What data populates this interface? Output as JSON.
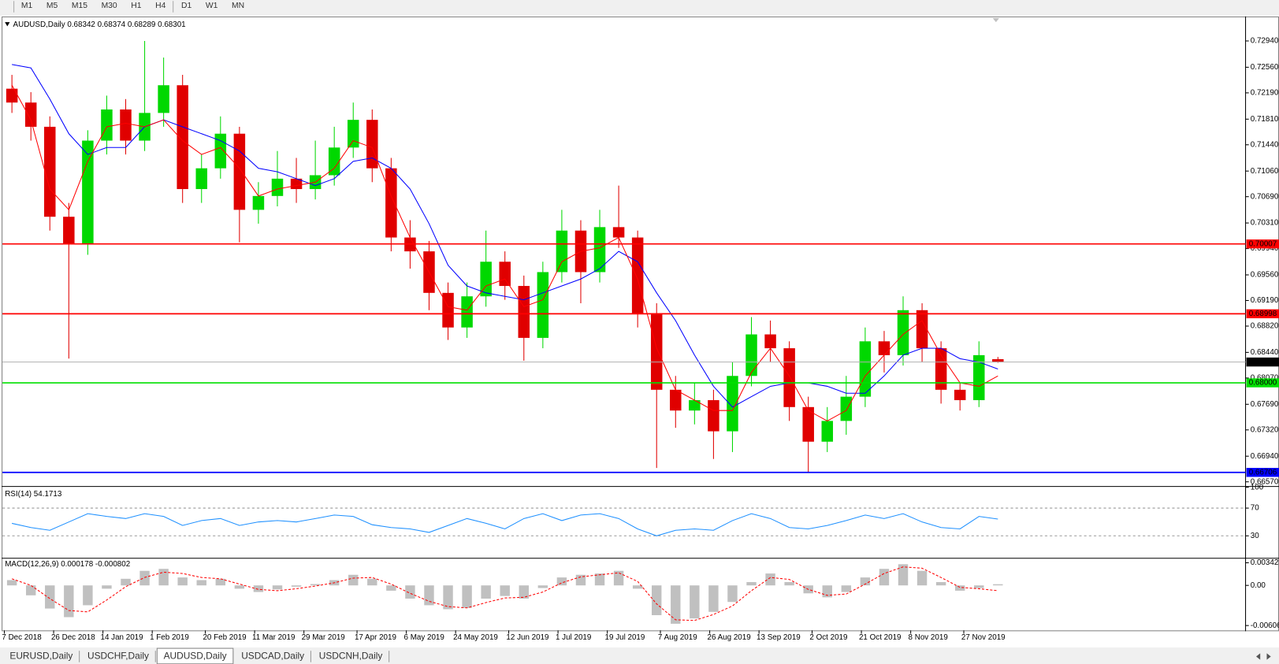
{
  "toolbar": {
    "timeframes": [
      "M1",
      "M5",
      "M15",
      "M30",
      "H1",
      "H4",
      "D1",
      "W1",
      "MN"
    ]
  },
  "chart_data": [
    {
      "type": "candlestick",
      "title": "AUDUSD,Daily 0.68342 0.68374 0.68289 0.68301",
      "x": [
        2,
        7,
        12,
        17,
        22,
        27,
        32,
        37,
        42,
        47,
        52,
        57,
        62,
        67,
        72,
        77,
        82,
        87,
        92,
        97,
        102,
        107,
        112,
        117,
        122,
        127,
        132,
        137,
        142,
        147,
        152,
        157,
        162,
        167,
        172,
        177,
        182,
        187,
        192,
        197,
        202,
        207,
        212,
        217,
        222,
        227,
        232,
        237,
        242,
        247,
        252,
        257,
        262
      ],
      "open": [
        0.7225,
        0.7205,
        0.717,
        0.704,
        0.7,
        0.715,
        0.7195,
        0.715,
        0.719,
        0.723,
        0.708,
        0.711,
        0.716,
        0.705,
        0.707,
        0.7095,
        0.708,
        0.71,
        0.714,
        0.718,
        0.711,
        0.701,
        0.699,
        0.693,
        0.688,
        0.6925,
        0.6975,
        0.694,
        0.6865,
        0.696,
        0.702,
        0.696,
        0.7025,
        0.701,
        0.69,
        0.679,
        0.676,
        0.6775,
        0.673,
        0.681,
        0.687,
        0.685,
        0.6765,
        0.6715,
        0.6745,
        0.678,
        0.686,
        0.684,
        0.6905,
        0.685,
        0.679,
        0.6775,
        0.68342
      ],
      "high": [
        0.7245,
        0.722,
        0.7185,
        0.706,
        0.7165,
        0.7215,
        0.721,
        0.7294,
        0.727,
        0.7245,
        0.713,
        0.7185,
        0.717,
        0.709,
        0.7135,
        0.7125,
        0.715,
        0.717,
        0.7205,
        0.7195,
        0.7125,
        0.7035,
        0.7005,
        0.6945,
        0.6945,
        0.702,
        0.699,
        0.6955,
        0.6975,
        0.705,
        0.7035,
        0.705,
        0.7085,
        0.702,
        0.6915,
        0.681,
        0.68,
        0.679,
        0.683,
        0.6895,
        0.689,
        0.686,
        0.678,
        0.6765,
        0.681,
        0.688,
        0.6875,
        0.6925,
        0.6915,
        0.686,
        0.68,
        0.686,
        0.68374
      ],
      "low": [
        0.719,
        0.715,
        0.702,
        0.6835,
        0.6985,
        0.713,
        0.713,
        0.7135,
        0.717,
        0.706,
        0.706,
        0.7095,
        0.7003,
        0.703,
        0.7055,
        0.706,
        0.7065,
        0.7085,
        0.7125,
        0.709,
        0.699,
        0.6965,
        0.6905,
        0.6862,
        0.6865,
        0.691,
        0.692,
        0.6832,
        0.685,
        0.6945,
        0.6915,
        0.6945,
        0.6995,
        0.688,
        0.6677,
        0.6735,
        0.674,
        0.669,
        0.67,
        0.6795,
        0.683,
        0.6745,
        0.667,
        0.67,
        0.6725,
        0.6765,
        0.6815,
        0.6825,
        0.683,
        0.677,
        0.676,
        0.6765,
        0.68289
      ],
      "close": [
        0.7205,
        0.717,
        0.704,
        0.7,
        0.715,
        0.7195,
        0.715,
        0.719,
        0.723,
        0.708,
        0.711,
        0.716,
        0.705,
        0.707,
        0.7095,
        0.708,
        0.71,
        0.714,
        0.718,
        0.711,
        0.701,
        0.699,
        0.693,
        0.688,
        0.6925,
        0.6975,
        0.694,
        0.6865,
        0.696,
        0.702,
        0.696,
        0.7025,
        0.701,
        0.69,
        0.679,
        0.676,
        0.6775,
        0.673,
        0.681,
        0.687,
        0.685,
        0.6765,
        0.6715,
        0.6745,
        0.678,
        0.686,
        0.684,
        0.6905,
        0.685,
        0.679,
        0.6775,
        0.684,
        0.68301
      ],
      "up_color": "#00d800",
      "down_color": "#e00000",
      "lines": [
        {
          "color": "#0000ff",
          "values": [
            0.726,
            0.7255,
            0.721,
            0.716,
            0.713,
            0.714,
            0.714,
            0.717,
            0.718,
            0.717,
            0.716,
            0.715,
            0.7135,
            0.711,
            0.7105,
            0.7095,
            0.7085,
            0.7095,
            0.712,
            0.7125,
            0.711,
            0.708,
            0.703,
            0.697,
            0.694,
            0.693,
            0.6925,
            0.692,
            0.693,
            0.694,
            0.695,
            0.6965,
            0.699,
            0.6975,
            0.693,
            0.689,
            0.684,
            0.6795,
            0.6765,
            0.678,
            0.6795,
            0.68,
            0.68,
            0.6795,
            0.6785,
            0.6785,
            0.681,
            0.684,
            0.685,
            0.685,
            0.6835,
            0.683,
            0.682
          ]
        },
        {
          "color": "#ff0000",
          "values": [
            0.723,
            0.718,
            0.708,
            0.705,
            0.712,
            0.717,
            0.7175,
            0.717,
            0.718,
            0.715,
            0.713,
            0.714,
            0.711,
            0.707,
            0.708,
            0.7085,
            0.709,
            0.711,
            0.715,
            0.714,
            0.707,
            0.701,
            0.696,
            0.691,
            0.6905,
            0.694,
            0.695,
            0.691,
            0.692,
            0.6975,
            0.699,
            0.6995,
            0.701,
            0.695,
            0.685,
            0.679,
            0.6775,
            0.676,
            0.676,
            0.6815,
            0.685,
            0.681,
            0.676,
            0.6745,
            0.676,
            0.681,
            0.684,
            0.687,
            0.689,
            0.684,
            0.68,
            0.6795,
            0.681
          ]
        }
      ],
      "levels": [
        {
          "value": 0.70007,
          "color": "#ff0000"
        },
        {
          "value": 0.68998,
          "color": "#ff0000"
        },
        {
          "value": 0.68,
          "label": "0.68000",
          "color": "#00e000"
        },
        {
          "value": 0.66706,
          "color": "#0000ff"
        },
        {
          "value": 0.68301,
          "color": "#000000"
        }
      ],
      "ylim": [
        0.6652,
        0.7327
      ],
      "yticks": [
        {
          "value": 0.7294,
          "label": "0.72940"
        },
        {
          "value": 0.7256,
          "label": "0.72560"
        },
        {
          "value": 0.7219,
          "label": "0.72190"
        },
        {
          "value": 0.7181,
          "label": "0.71810"
        },
        {
          "value": 0.7144,
          "label": "0.71440"
        },
        {
          "value": 0.7106,
          "label": "0.71060"
        },
        {
          "value": 0.7069,
          "label": "0.70690"
        },
        {
          "value": 0.7031,
          "label": "0.70310"
        },
        {
          "value": 0.6994,
          "label": "0.69940"
        },
        {
          "value": 0.6956,
          "label": "0.69560"
        },
        {
          "value": 0.6919,
          "label": "0.69190"
        },
        {
          "value": 0.6882,
          "label": "0.68820"
        },
        {
          "value": 0.6844,
          "label": "0.68440"
        },
        {
          "value": 0.6807,
          "label": "0.68070"
        },
        {
          "value": 0.6769,
          "label": "0.67690"
        },
        {
          "value": 0.6732,
          "label": "0.67320"
        },
        {
          "value": 0.6694,
          "label": "0.66940"
        },
        {
          "value": 0.6657,
          "label": "0.66570"
        }
      ],
      "xlim": [
        -0.5,
        327.3
      ],
      "xticks": [
        {
          "value": 0,
          "label": "7 Dec 2018"
        },
        {
          "value": 13,
          "label": "26 Dec 2018"
        },
        {
          "value": 26,
          "label": "14 Jan 2019"
        },
        {
          "value": 39,
          "label": "1 Feb 2019"
        },
        {
          "value": 53,
          "label": "20 Feb 2019"
        },
        {
          "value": 66,
          "label": "11 Mar 2019"
        },
        {
          "value": 79,
          "label": "29 Mar 2019"
        },
        {
          "value": 93,
          "label": "17 Apr 2019"
        },
        {
          "value": 106,
          "label": "6 May 2019"
        },
        {
          "value": 119,
          "label": "24 May 2019"
        },
        {
          "value": 133,
          "label": "12 Jun 2019"
        },
        {
          "value": 146,
          "label": "1 Jul 2019"
        },
        {
          "value": 159,
          "label": "19 Jul 2019"
        },
        {
          "value": 173,
          "label": "7 Aug 2019"
        },
        {
          "value": 186,
          "label": "26 Aug 2019"
        },
        {
          "value": 199,
          "label": "13 Sep 2019"
        },
        {
          "value": 213,
          "label": "2 Oct 2019"
        },
        {
          "value": 226,
          "label": "21 Oct 2019"
        },
        {
          "value": 239,
          "label": "8 Nov 2019"
        },
        {
          "value": 253,
          "label": "27 Nov 2019"
        }
      ]
    },
    {
      "type": "line",
      "title": "RSI(14) 54.1713",
      "color": "#1e90ff",
      "values": [
        48,
        42,
        38,
        50,
        62,
        58,
        55,
        62,
        58,
        45,
        52,
        55,
        45,
        50,
        52,
        50,
        55,
        60,
        58,
        46,
        42,
        40,
        35,
        45,
        55,
        48,
        40,
        55,
        62,
        52,
        60,
        62,
        55,
        40,
        30,
        38,
        40,
        38,
        52,
        62,
        55,
        42,
        40,
        45,
        52,
        60,
        55,
        62,
        50,
        42,
        40,
        58,
        54.1713
      ],
      "ylim": [
        0,
        100
      ],
      "yticks": [
        100,
        70,
        30
      ],
      "grid": "dashed"
    },
    {
      "type": "macd",
      "title": "MACD(12,26,9) 0.000178 -0.000802",
      "color": "#c0c0c0",
      "signal_color": "#ff0000",
      "histogram": [
        0.0008,
        -0.0015,
        -0.0035,
        -0.0048,
        -0.003,
        -0.0005,
        0.001,
        0.0022,
        0.0025,
        0.0012,
        0.0008,
        0.001,
        -0.0005,
        -0.001,
        -0.0006,
        -0.0002,
        0.0002,
        0.0008,
        0.0016,
        0.001,
        -0.0008,
        -0.002,
        -0.003,
        -0.0036,
        -0.0034,
        -0.002,
        -0.0016,
        -0.002,
        -0.0004,
        0.0012,
        0.0016,
        0.0018,
        0.0022,
        -0.0005,
        -0.0045,
        -0.0058,
        -0.005,
        -0.004,
        -0.0025,
        0.0005,
        0.0018,
        0.0005,
        -0.0012,
        -0.0018,
        -0.001,
        0.0012,
        0.0025,
        0.0032,
        0.0022,
        0.0005,
        -0.0008,
        -0.0004,
        0.000178
      ],
      "signal": [
        0.001,
        0,
        -0.002,
        -0.0038,
        -0.004,
        -0.0022,
        -0.0002,
        0.0012,
        0.002,
        0.0018,
        0.0012,
        0.001,
        0.0002,
        -0.0006,
        -0.0008,
        -0.0005,
        -0.0001,
        0.0004,
        0.0011,
        0.0012,
        0.0002,
        -0.0012,
        -0.0024,
        -0.0032,
        -0.0034,
        -0.0026,
        -0.0019,
        -0.0018,
        -0.001,
        0.0004,
        0.0013,
        0.0016,
        0.0019,
        0.0006,
        -0.0028,
        -0.0052,
        -0.0053,
        -0.0044,
        -0.0031,
        -0.0008,
        0.0012,
        0.0009,
        -0.0006,
        -0.0015,
        -0.0013,
        0.0002,
        0.0018,
        0.0028,
        0.0026,
        0.0012,
        -0.0003,
        -0.0005,
        -0.000802
      ],
      "ylim": [
        -0.00668,
        0.00392
      ],
      "yticks": [
        0.003421,
        {
          "value": 0,
          "label": "0.00"
        },
        -0.006069
      ]
    }
  ],
  "tabs": [
    "EURUSD,Daily",
    "USDCHF,Daily",
    "AUDUSD,Daily",
    "USDCAD,Daily",
    "USDCNH,Daily"
  ],
  "active_tab": 2
}
